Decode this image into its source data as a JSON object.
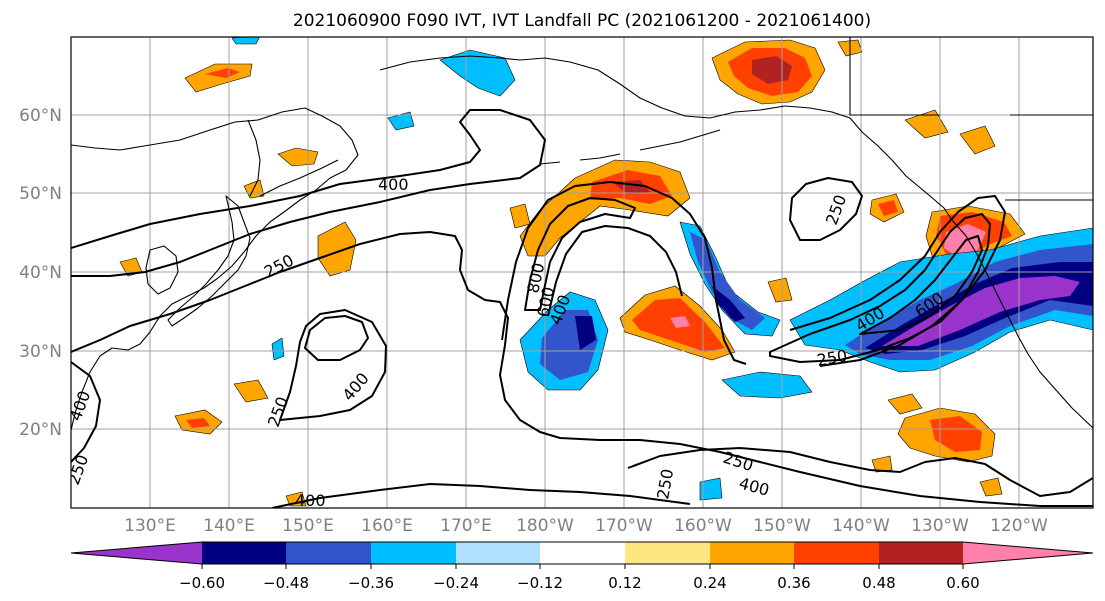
{
  "title": "2021060900 F090 IVT, IVT Landfall PC (2021061200 - 2021061400)",
  "map": {
    "lat_labels": [
      "60°N",
      "50°N",
      "40°N",
      "30°N",
      "20°N"
    ],
    "lon_labels": [
      "130°E",
      "140°E",
      "150°E",
      "160°E",
      "170°E",
      "180°W",
      "170°W",
      "160°W",
      "150°W",
      "140°W",
      "130°W",
      "120°W"
    ],
    "contour_labels": [
      "400",
      "250",
      "250",
      "400",
      "250",
      "400",
      "800",
      "600",
      "400",
      "250",
      "250",
      "400",
      "600",
      "250",
      "250",
      "400",
      "400",
      "600",
      "400",
      "250",
      "250"
    ]
  },
  "colorbar": {
    "tick_labels": [
      "−0.60",
      "−0.48",
      "−0.36",
      "−0.24",
      "−0.12",
      "0.12",
      "0.24",
      "0.36",
      "0.48",
      "0.60"
    ],
    "colors": [
      "#9933cc",
      "#000080",
      "#3355cc",
      "#00bfff",
      "#b0e0ff",
      "#ffffff",
      "#ffe680",
      "#ffa500",
      "#ff4000",
      "#b22222",
      "#ff80aa"
    ]
  }
}
